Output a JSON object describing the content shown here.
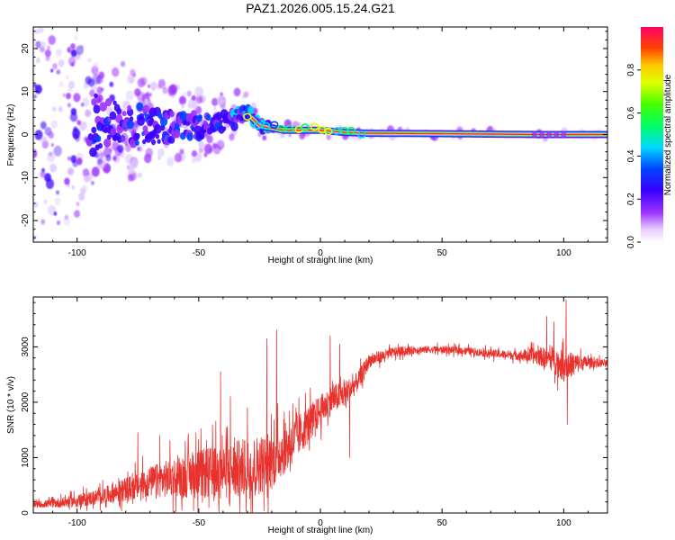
{
  "title": "PAZ1.2026.005.15.24.G21",
  "colors": {
    "snr_line": "#e8322e",
    "spectrogram_low": "#7a1fd8",
    "spectrogram_high": "#ff2a4d",
    "axis": "#000000"
  },
  "chart_data": [
    {
      "type": "heatmap",
      "name": "spectrogram",
      "xlabel": "Height of straight line (km)",
      "ylabel": "Frequency (Hz)",
      "xlim": [
        -118,
        118
      ],
      "ylim": [
        -25,
        25
      ],
      "xticks": [
        -100,
        -50,
        0,
        50,
        100
      ],
      "yticks": [
        20,
        10,
        0,
        -10,
        -20
      ],
      "colorbar": {
        "label": "Normalized spectral amplitude",
        "range": [
          0,
          1
        ],
        "ticks": [
          0.0,
          0.2,
          0.4,
          0.6,
          0.8
        ]
      },
      "description_points": {
        "center_freq_hz": [
          [
            -115,
            0
          ],
          [
            -90,
            3
          ],
          [
            -70,
            2
          ],
          [
            -50,
            2
          ],
          [
            -35,
            4
          ],
          [
            -30,
            5
          ],
          [
            -25,
            2
          ],
          [
            -15,
            1
          ],
          [
            -5,
            1
          ],
          [
            0,
            1
          ],
          [
            10,
            0.5
          ],
          [
            20,
            0.3
          ],
          [
            50,
            0.2
          ],
          [
            90,
            0
          ],
          [
            100,
            0
          ],
          [
            118,
            0
          ]
        ],
        "spread_hz": [
          [
            -115,
            22
          ],
          [
            -100,
            18
          ],
          [
            -90,
            10
          ],
          [
            -70,
            7
          ],
          [
            -50,
            5
          ],
          [
            -35,
            4
          ],
          [
            -25,
            2
          ],
          [
            -15,
            1
          ],
          [
            0,
            1
          ],
          [
            20,
            0.6
          ],
          [
            118,
            0.5
          ]
        ]
      }
    },
    {
      "type": "line",
      "name": "snr",
      "xlabel": "Height of straight line (km)",
      "ylabel": "SNR (10 * v/v)",
      "xlim": [
        -118,
        118
      ],
      "ylim": [
        0,
        3900
      ],
      "xticks": [
        -100,
        -50,
        0,
        50,
        100
      ],
      "yticks": [
        0,
        1000,
        2000,
        3000
      ],
      "envelope": {
        "x": [
          -118,
          -110,
          -100,
          -90,
          -80,
          -70,
          -60,
          -50,
          -40,
          -30,
          -20,
          -10,
          0,
          5,
          10,
          15,
          20,
          30,
          40,
          50,
          60,
          70,
          80,
          90,
          95,
          100,
          105,
          110,
          118
        ],
        "y": [
          150,
          170,
          220,
          300,
          420,
          560,
          650,
          700,
          750,
          800,
          950,
          1350,
          1850,
          2050,
          2150,
          2350,
          2750,
          2900,
          2950,
          2950,
          2930,
          2880,
          2850,
          2830,
          2780,
          2650,
          2700,
          2720,
          2700
        ]
      },
      "noise_amplitude": {
        "x": [
          -118,
          -90,
          -70,
          -50,
          -30,
          -20,
          -10,
          0,
          10,
          20,
          40,
          60,
          80,
          90,
          100,
          110,
          118
        ],
        "y": [
          60,
          180,
          350,
          550,
          700,
          650,
          500,
          350,
          300,
          150,
          80,
          80,
          100,
          200,
          350,
          120,
          80
        ]
      },
      "spikes": [
        {
          "x": -75,
          "y": 1450
        },
        {
          "x": -66,
          "y": 1400
        },
        {
          "x": -41,
          "y": 2550
        },
        {
          "x": -37,
          "y": 2100
        },
        {
          "x": -30,
          "y": 1900
        },
        {
          "x": -22,
          "y": 3150
        },
        {
          "x": -18,
          "y": 3300
        },
        {
          "x": -10,
          "y": 1900
        },
        {
          "x": 4,
          "y": 3200
        },
        {
          "x": 8,
          "y": 3050
        },
        {
          "x": 12,
          "y": 1000
        },
        {
          "x": 93,
          "y": 3550
        },
        {
          "x": 96,
          "y": 3450
        },
        {
          "x": 101,
          "y": 3850
        },
        {
          "x": 101.5,
          "y": 1600
        }
      ]
    }
  ]
}
